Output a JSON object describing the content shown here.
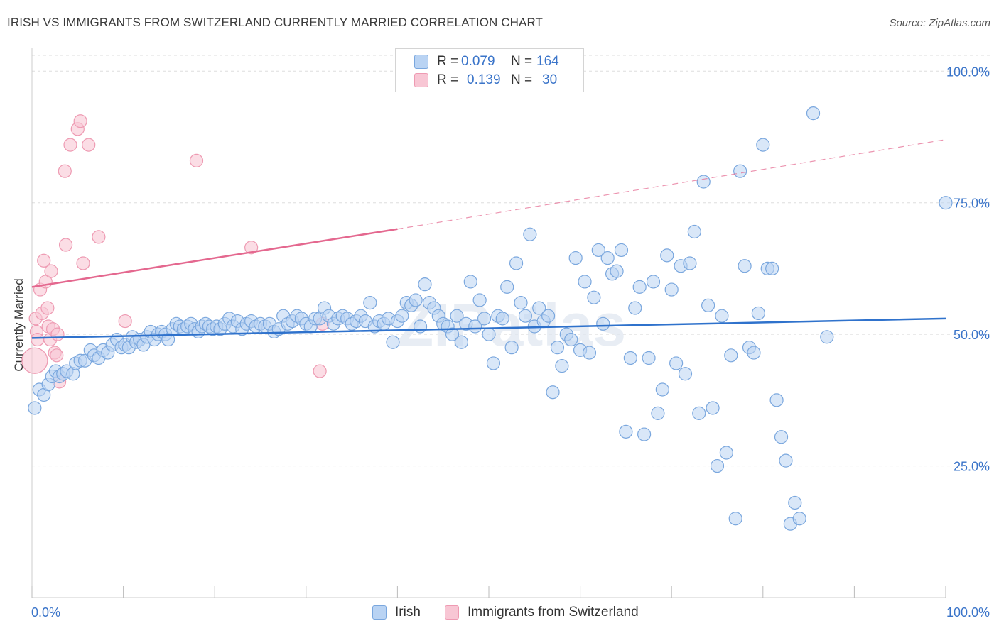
{
  "title": "IRISH VS IMMIGRANTS FROM SWITZERLAND CURRENTLY MARRIED CORRELATION CHART",
  "source": "Source: ZipAtlas.com",
  "watermark": "ZIPatlas",
  "legend": {
    "rows": [
      {
        "r_label": "R =",
        "r_value": "0.079",
        "n_label": "N =",
        "n_value": "164"
      },
      {
        "r_label": "R =",
        "r_value": "0.139",
        "n_label": "N =",
        "n_value": "30"
      }
    ]
  },
  "bottom_legend": [
    "Irish",
    "Immigrants from Switzerland"
  ],
  "colors": {
    "irish_fill": "#b9d3f3",
    "irish_stroke": "#7aa7de",
    "irish_line": "#2f72cc",
    "swiss_fill": "#f8c6d4",
    "swiss_stroke": "#ee9ab2",
    "swiss_line": "#e4688f",
    "tick_label": "#3a74c9",
    "grid": "#dddddd"
  },
  "chart_data": {
    "type": "scatter",
    "title": "IRISH VS IMMIGRANTS FROM SWITZERLAND CURRENTLY MARRIED CORRELATION CHART",
    "xlabel": "",
    "ylabel": "Currently Married",
    "xlim": [
      0,
      100
    ],
    "ylim": [
      0,
      103
    ],
    "x_tick_labels": [
      "0.0%",
      "100.0%"
    ],
    "y_ticks": [
      25,
      50,
      75,
      100
    ],
    "y_tick_labels": [
      "25.0%",
      "50.0%",
      "75.0%",
      "100.0%"
    ],
    "grid": true,
    "legend_position": "top-center",
    "series": [
      {
        "name": "Irish",
        "r": 0.079,
        "n": 164,
        "trend": {
          "x0": 0,
          "y0": 49.3,
          "x1": 100,
          "y1": 53.0
        },
        "points": [
          [
            0.3,
            36.0
          ],
          [
            0.8,
            39.5
          ],
          [
            1.3,
            38.5
          ],
          [
            1.8,
            40.5
          ],
          [
            2.2,
            42.0
          ],
          [
            2.6,
            43.0
          ],
          [
            3.0,
            42.0
          ],
          [
            3.4,
            42.5
          ],
          [
            3.8,
            43.0
          ],
          [
            4.5,
            42.5
          ],
          [
            4.8,
            44.5
          ],
          [
            5.3,
            45.0
          ],
          [
            5.8,
            45.0
          ],
          [
            6.4,
            47.0
          ],
          [
            6.8,
            46.0
          ],
          [
            7.3,
            45.5
          ],
          [
            7.8,
            47.0
          ],
          [
            8.3,
            46.5
          ],
          [
            8.8,
            48.0
          ],
          [
            9.3,
            49.0
          ],
          [
            9.8,
            47.5
          ],
          [
            10.2,
            48.0
          ],
          [
            10.6,
            47.5
          ],
          [
            11.0,
            49.5
          ],
          [
            11.4,
            48.5
          ],
          [
            11.8,
            49.0
          ],
          [
            12.2,
            48.0
          ],
          [
            12.6,
            49.5
          ],
          [
            13.0,
            50.5
          ],
          [
            13.4,
            49.0
          ],
          [
            13.8,
            50.0
          ],
          [
            14.2,
            50.5
          ],
          [
            14.6,
            50.0
          ],
          [
            14.9,
            49.0
          ],
          [
            15.4,
            51.0
          ],
          [
            15.8,
            52.0
          ],
          [
            16.2,
            51.5
          ],
          [
            16.6,
            51.0
          ],
          [
            17.0,
            51.5
          ],
          [
            17.4,
            52.0
          ],
          [
            17.8,
            51.0
          ],
          [
            18.2,
            50.5
          ],
          [
            18.6,
            51.5
          ],
          [
            19.0,
            52.0
          ],
          [
            19.4,
            51.5
          ],
          [
            19.8,
            51.0
          ],
          [
            20.2,
            51.5
          ],
          [
            20.6,
            51.0
          ],
          [
            21.1,
            52.0
          ],
          [
            21.6,
            53.0
          ],
          [
            22.0,
            51.5
          ],
          [
            22.5,
            52.5
          ],
          [
            23.0,
            51.0
          ],
          [
            23.5,
            52.0
          ],
          [
            24.0,
            52.5
          ],
          [
            24.5,
            51.5
          ],
          [
            25.0,
            52.0
          ],
          [
            25.5,
            51.5
          ],
          [
            26.0,
            52.0
          ],
          [
            26.5,
            50.5
          ],
          [
            27.0,
            51.0
          ],
          [
            27.5,
            53.5
          ],
          [
            28.0,
            52.0
          ],
          [
            28.5,
            52.5
          ],
          [
            29.0,
            53.5
          ],
          [
            29.5,
            53.0
          ],
          [
            30.0,
            52.0
          ],
          [
            30.5,
            51.5
          ],
          [
            31.0,
            53.0
          ],
          [
            31.5,
            53.0
          ],
          [
            32.0,
            55.0
          ],
          [
            32.5,
            53.5
          ],
          [
            33.0,
            52.0
          ],
          [
            33.5,
            53.0
          ],
          [
            34.0,
            53.5
          ],
          [
            34.5,
            53.0
          ],
          [
            35.0,
            52.0
          ],
          [
            35.5,
            52.5
          ],
          [
            36.0,
            53.5
          ],
          [
            36.5,
            52.5
          ],
          [
            37.0,
            56.0
          ],
          [
            37.5,
            51.5
          ],
          [
            38.0,
            52.5
          ],
          [
            38.5,
            52.0
          ],
          [
            39.0,
            53.0
          ],
          [
            39.5,
            48.5
          ],
          [
            40.0,
            52.5
          ],
          [
            40.5,
            53.5
          ],
          [
            41.0,
            56.0
          ],
          [
            41.5,
            55.5
          ],
          [
            42.0,
            56.5
          ],
          [
            42.5,
            51.5
          ],
          [
            43.0,
            59.5
          ],
          [
            43.5,
            56.0
          ],
          [
            44.0,
            55.0
          ],
          [
            44.5,
            53.5
          ],
          [
            45.0,
            52.0
          ],
          [
            45.5,
            51.5
          ],
          [
            46.0,
            50.0
          ],
          [
            46.5,
            53.5
          ],
          [
            47.0,
            48.5
          ],
          [
            47.5,
            52.0
          ],
          [
            48.0,
            60.0
          ],
          [
            48.5,
            51.5
          ],
          [
            49.0,
            56.5
          ],
          [
            49.5,
            53.0
          ],
          [
            50.0,
            50.0
          ],
          [
            50.5,
            44.5
          ],
          [
            51.0,
            53.5
          ],
          [
            51.5,
            53.0
          ],
          [
            52.0,
            59.0
          ],
          [
            52.5,
            47.5
          ],
          [
            53.0,
            63.5
          ],
          [
            53.5,
            56.0
          ],
          [
            54.0,
            53.5
          ],
          [
            54.5,
            69.0
          ],
          [
            55.0,
            51.5
          ],
          [
            55.5,
            55.0
          ],
          [
            56.0,
            52.5
          ],
          [
            56.5,
            53.5
          ],
          [
            57.0,
            39.0
          ],
          [
            57.5,
            47.5
          ],
          [
            58.0,
            44.0
          ],
          [
            58.5,
            50.0
          ],
          [
            59.0,
            49.0
          ],
          [
            59.5,
            64.5
          ],
          [
            60.0,
            47.0
          ],
          [
            60.5,
            60.0
          ],
          [
            61.0,
            46.5
          ],
          [
            61.5,
            57.0
          ],
          [
            62.0,
            66.0
          ],
          [
            62.5,
            52.0
          ],
          [
            63.0,
            64.5
          ],
          [
            63.5,
            61.5
          ],
          [
            64.0,
            62.0
          ],
          [
            64.5,
            66.0
          ],
          [
            65.0,
            31.5
          ],
          [
            65.5,
            45.5
          ],
          [
            66.0,
            55.0
          ],
          [
            66.5,
            59.0
          ],
          [
            67.0,
            31.0
          ],
          [
            67.5,
            45.5
          ],
          [
            68.0,
            60.0
          ],
          [
            68.5,
            35.0
          ],
          [
            69.0,
            39.5
          ],
          [
            69.5,
            65.0
          ],
          [
            70.0,
            58.5
          ],
          [
            70.5,
            44.5
          ],
          [
            71.0,
            63.0
          ],
          [
            71.5,
            42.5
          ],
          [
            72.0,
            63.5
          ],
          [
            72.5,
            69.5
          ],
          [
            73.0,
            35.0
          ],
          [
            73.5,
            79.0
          ],
          [
            74.0,
            55.5
          ],
          [
            74.5,
            36.0
          ],
          [
            75.0,
            25.0
          ],
          [
            75.5,
            53.5
          ],
          [
            76.0,
            27.5
          ],
          [
            76.5,
            46.0
          ],
          [
            77.0,
            15.0
          ],
          [
            77.5,
            81.0
          ],
          [
            78.0,
            63.0
          ],
          [
            78.5,
            47.5
          ],
          [
            79.0,
            46.5
          ],
          [
            79.5,
            54.0
          ],
          [
            80.0,
            86.0
          ],
          [
            80.5,
            62.5
          ],
          [
            81.0,
            62.5
          ],
          [
            81.5,
            37.5
          ],
          [
            82.0,
            30.5
          ],
          [
            82.5,
            26.0
          ],
          [
            83.0,
            14.0
          ],
          [
            83.5,
            18.0
          ],
          [
            84.0,
            15.0
          ],
          [
            85.5,
            92.0
          ],
          [
            87.0,
            49.5
          ],
          [
            100.0,
            75.0
          ]
        ]
      },
      {
        "name": "Immigrants from Switzerland",
        "r": 0.139,
        "n": 30,
        "trend": {
          "x0": 0,
          "y0": 59.0,
          "x1": 40,
          "y1": 70.0,
          "x_dash_end": 100,
          "y_dash_end": 87.0
        },
        "points": [
          [
            0.3,
            45.0
          ],
          [
            0.4,
            53.0
          ],
          [
            0.5,
            50.5
          ],
          [
            0.6,
            49.0
          ],
          [
            0.9,
            58.5
          ],
          [
            1.1,
            54.0
          ],
          [
            1.3,
            64.0
          ],
          [
            1.5,
            60.0
          ],
          [
            1.7,
            55.0
          ],
          [
            1.8,
            51.5
          ],
          [
            2.0,
            49.0
          ],
          [
            2.1,
            62.0
          ],
          [
            2.3,
            51.0
          ],
          [
            2.5,
            46.5
          ],
          [
            2.7,
            46.0
          ],
          [
            2.8,
            50.0
          ],
          [
            3.0,
            41.0
          ],
          [
            3.6,
            81.0
          ],
          [
            3.7,
            67.0
          ],
          [
            4.2,
            86.0
          ],
          [
            5.0,
            89.0
          ],
          [
            5.3,
            90.5
          ],
          [
            5.6,
            63.5
          ],
          [
            6.2,
            86.0
          ],
          [
            7.3,
            68.5
          ],
          [
            10.2,
            52.5
          ],
          [
            18.0,
            83.0
          ],
          [
            24.0,
            66.5
          ],
          [
            31.5,
            43.0
          ],
          [
            31.8,
            52.0
          ]
        ]
      }
    ]
  }
}
